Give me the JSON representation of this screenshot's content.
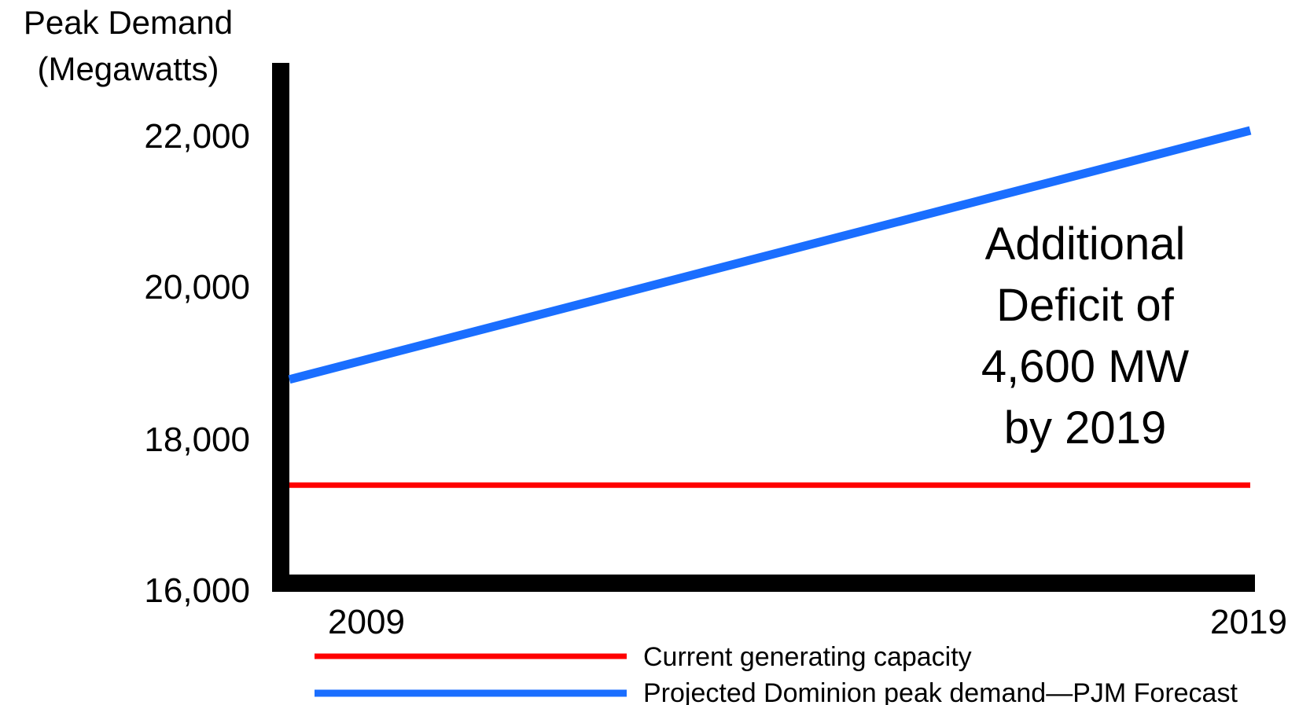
{
  "chart_data": {
    "type": "line",
    "title": "",
    "ylabel": [
      "Peak Demand",
      "(Megawatts)"
    ],
    "xlabel": "",
    "x": [
      2009,
      2019
    ],
    "x_tick_labels": [
      "2009",
      "2019"
    ],
    "ylim": [
      16000,
      22600
    ],
    "y_ticks": [
      16000,
      18000,
      20000,
      22000
    ],
    "y_tick_labels": [
      "16,000",
      "18,000",
      "20,000",
      "22,000"
    ],
    "grid": false,
    "series": [
      {
        "name": "Current generating capacity",
        "color": "#ff0000",
        "values": [
          17300,
          17300
        ]
      },
      {
        "name": "Projected Dominion peak demand—PJM Forecast",
        "color": "#1a6eff",
        "values": [
          18700,
          22000
        ]
      }
    ],
    "annotation": [
      "Additional",
      "Deficit of",
      "4,600 MW",
      "by 2019"
    ],
    "legend_position": "bottom"
  }
}
